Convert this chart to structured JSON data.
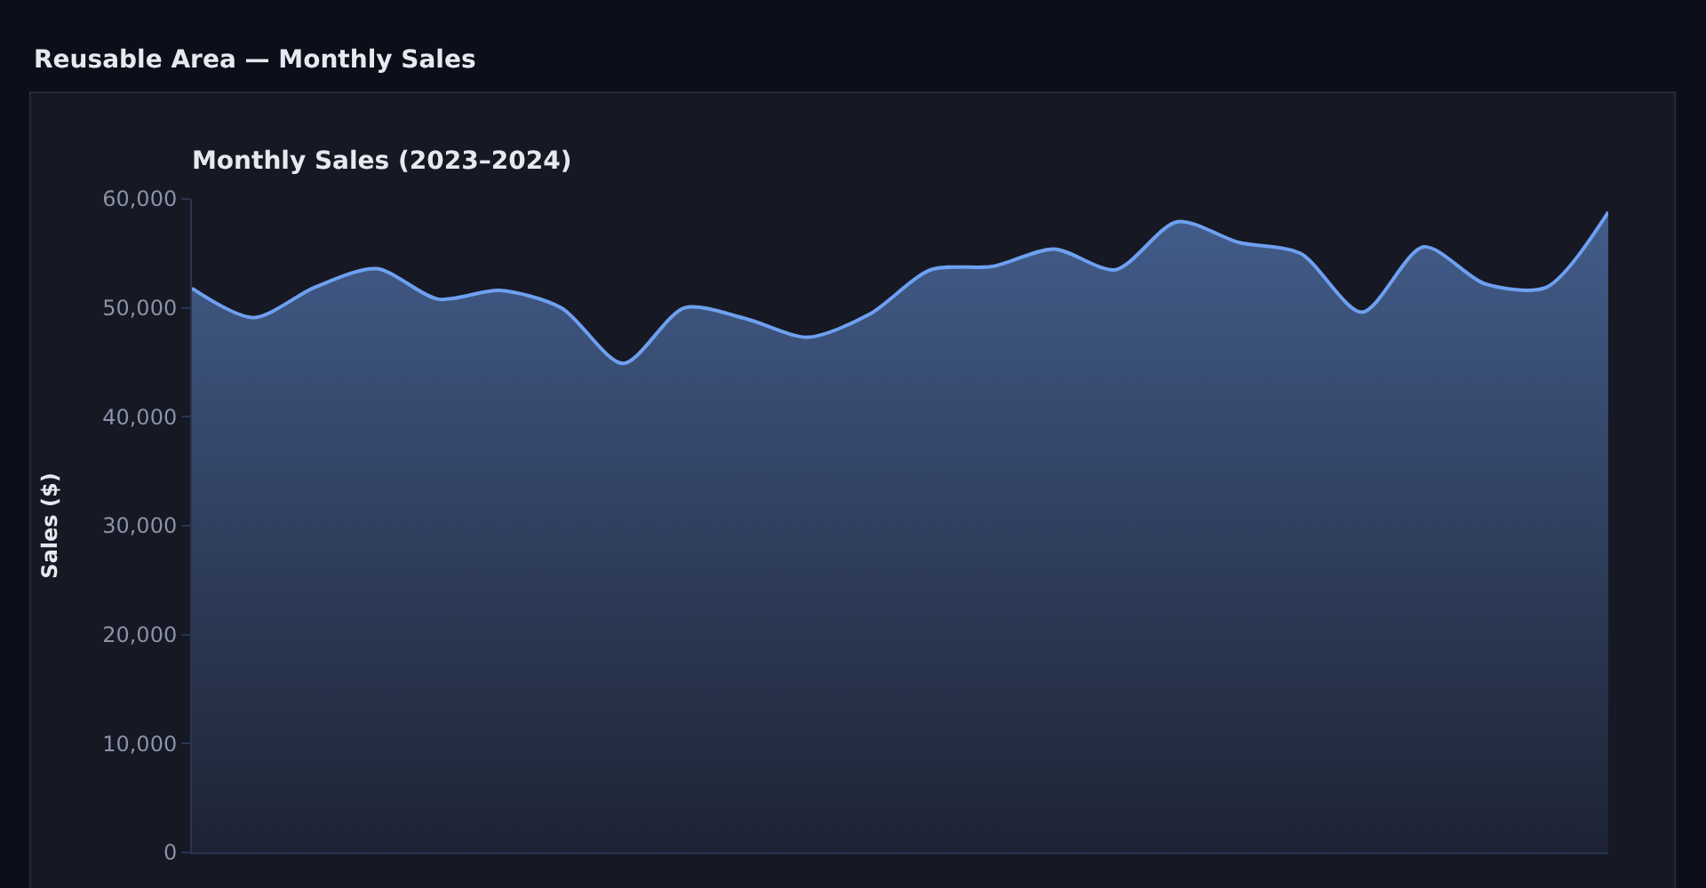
{
  "chart_data": {
    "type": "area",
    "title": "Monthly Sales (2023–2024)",
    "subtitle": "Reusable Area — Monthly Sales",
    "ylabel": "Sales ($)",
    "categories": [
      null,
      null,
      null,
      null,
      null,
      null,
      null,
      null,
      null,
      null,
      null,
      null,
      null,
      null,
      null,
      null,
      null,
      null,
      null,
      null,
      null,
      null,
      null,
      null
    ],
    "series": [
      {
        "color": "#6ea0f0",
        "values": [
          51800,
          49100,
          51900,
          53600,
          50800,
          51600,
          50000,
          44900,
          50000,
          49000,
          47300,
          49400,
          53500,
          53800,
          55400,
          53500,
          57900,
          56000,
          55000,
          49600,
          55600,
          52200,
          51900,
          58800
        ]
      }
    ],
    "ylim": [
      0,
      60000
    ],
    "yticks": [
      {
        "value": 0,
        "label": "0"
      },
      {
        "value": 10000,
        "label": "10,000"
      },
      {
        "value": 20000,
        "label": "20,000"
      },
      {
        "value": 30000,
        "label": "30,000"
      },
      {
        "value": 40000,
        "label": "40,000"
      },
      {
        "value": 50000,
        "label": "50,000"
      },
      {
        "value": 60000,
        "label": "60,000"
      }
    ],
    "grid": false
  }
}
